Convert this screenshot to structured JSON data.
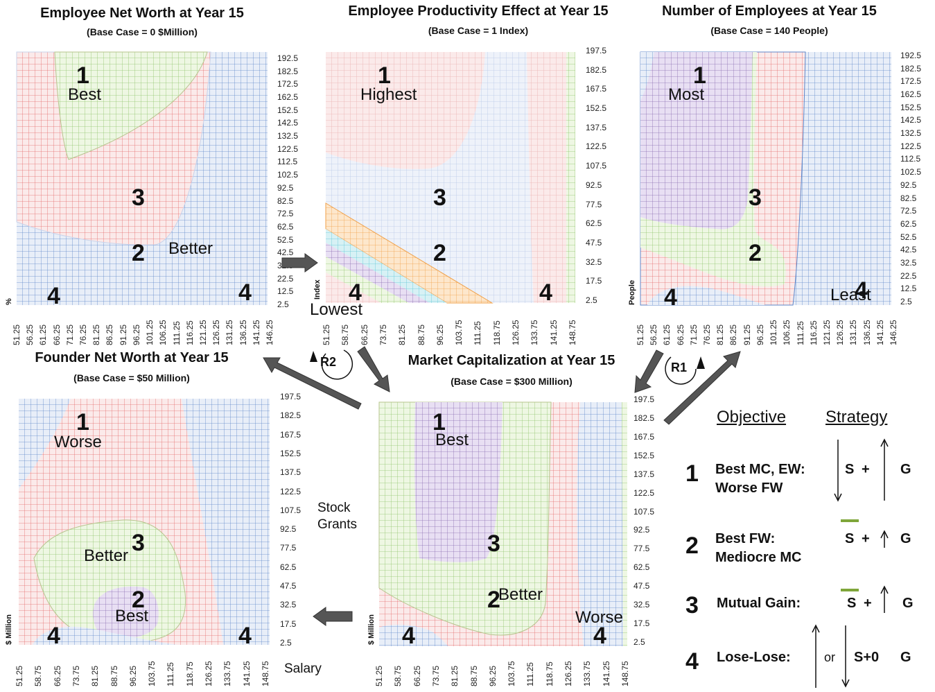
{
  "colors": {
    "red": "#e46a6a",
    "green": "#8fc46a",
    "blue": "#5d86c9",
    "purple": "#8a6bb0",
    "orange": "#f0a14a",
    "cyan": "#5fc6d6",
    "arrow_fill": "#555555"
  },
  "chart_data": [
    {
      "id": "employee-net-worth",
      "type": "heatmap",
      "title": "Employee Net Worth at Year 15",
      "subtitle": "(Base Case = 0 $Million)",
      "ylabel": "%",
      "xlabel": "",
      "x_ticks": [
        "51.25",
        "56.25",
        "61.25",
        "66.25",
        "71.25",
        "76.25",
        "81.25",
        "86.25",
        "91.25",
        "96.25",
        "101.25",
        "106.25",
        "111.25",
        "116.25",
        "121.25",
        "126.25",
        "131.25",
        "136.25",
        "141.25",
        "146.25"
      ],
      "y_ticks": [
        "192.5",
        "182.5",
        "172.5",
        "162.5",
        "152.5",
        "142.5",
        "132.5",
        "122.5",
        "112.5",
        "102.5",
        "92.5",
        "82.5",
        "72.5",
        "62.5",
        "52.5",
        "42.5",
        "32.5",
        "22.5",
        "12.5",
        "2.5"
      ],
      "region_numbers": [
        "1",
        "3",
        "2",
        "4",
        "4"
      ],
      "region_labels": [
        "Best",
        "Better"
      ]
    },
    {
      "id": "employee-productivity",
      "type": "heatmap",
      "title": "Employee Productivity  Effect at Year 15",
      "subtitle": "(Base Case = 1 Index)",
      "ylabel": "Index",
      "xlabel": "",
      "x_ticks": [
        "51.25",
        "58.75",
        "66.25",
        "73.75",
        "81.25",
        "88.75",
        "96.25",
        "103.75",
        "111.25",
        "118.75",
        "126.25",
        "133.75",
        "141.25",
        "148.75"
      ],
      "y_ticks": [
        "197.5",
        "182.5",
        "167.5",
        "152.5",
        "137.5",
        "122.5",
        "107.5",
        "92.5",
        "77.5",
        "62.5",
        "47.5",
        "32.5",
        "17.5",
        "2.5"
      ],
      "region_numbers": [
        "1",
        "3",
        "2",
        "4",
        "4"
      ],
      "region_labels": [
        "Highest",
        "Lowest"
      ]
    },
    {
      "id": "number-of-employees",
      "type": "heatmap",
      "title": "Number of Employees at Year 15",
      "subtitle": "(Base Case = 140 People)",
      "ylabel": "People",
      "xlabel": "",
      "x_ticks": [
        "51.25",
        "56.25",
        "61.25",
        "66.25",
        "71.25",
        "76.25",
        "81.25",
        "86.25",
        "91.25",
        "96.25",
        "101.25",
        "106.25",
        "111.25",
        "116.25",
        "121.25",
        "126.25",
        "131.25",
        "136.25",
        "141.25",
        "146.25"
      ],
      "y_ticks": [
        "192.5",
        "182.5",
        "172.5",
        "162.5",
        "152.5",
        "142.5",
        "132.5",
        "122.5",
        "112.5",
        "102.5",
        "92.5",
        "82.5",
        "72.5",
        "62.5",
        "52.5",
        "42.5",
        "32.5",
        "22.5",
        "12.5",
        "2.5"
      ],
      "region_numbers": [
        "1",
        "3",
        "2",
        "4",
        "4"
      ],
      "region_labels": [
        "Most",
        "Least"
      ]
    },
    {
      "id": "founder-net-worth",
      "type": "heatmap",
      "title": "Founder Net Worth at Year 15",
      "subtitle": "(Base Case = $50 Million)",
      "ylabel": "$ Million",
      "xlabel": "Salary",
      "y_axis_side_label": [
        "Stock",
        "Grants"
      ],
      "x_ticks": [
        "51.25",
        "58.75",
        "66.25",
        "73.75",
        "81.25",
        "88.75",
        "96.25",
        "103.75",
        "111.25",
        "118.75",
        "126.25",
        "133.75",
        "141.25",
        "148.75"
      ],
      "y_ticks": [
        "197.5",
        "182.5",
        "167.5",
        "152.5",
        "137.5",
        "122.5",
        "107.5",
        "92.5",
        "77.5",
        "62.5",
        "47.5",
        "32.5",
        "17.5",
        "2.5"
      ],
      "region_numbers": [
        "1",
        "3",
        "2",
        "4",
        "4"
      ],
      "region_labels": [
        "Worse",
        "Better",
        "Best"
      ]
    },
    {
      "id": "market-capitalization",
      "type": "heatmap",
      "title": "Market Capitalization  at Year 15",
      "subtitle": "(Base Case = $300 Million)",
      "ylabel": "$ Million",
      "xlabel": "",
      "x_ticks": [
        "51.25",
        "58.75",
        "66.25",
        "73.75",
        "81.25",
        "88.75",
        "96.25",
        "103.75",
        "111.25",
        "118.75",
        "126.25",
        "133.75",
        "141.25",
        "148.75"
      ],
      "y_ticks": [
        "197.5",
        "182.5",
        "167.5",
        "152.5",
        "137.5",
        "122.5",
        "107.5",
        "92.5",
        "77.5",
        "62.5",
        "47.5",
        "32.5",
        "17.5",
        "2.5"
      ],
      "region_numbers": [
        "1",
        "3",
        "2",
        "4",
        "4"
      ],
      "region_labels": [
        "Best",
        "Better",
        "Worse"
      ]
    }
  ],
  "loops": {
    "r1": "R1",
    "r2": "R2"
  },
  "legend": {
    "objective_header": "Objective",
    "strategy_header": "Strategy",
    "rows": [
      {
        "num": "1",
        "line1": "Best MC, EW:",
        "line2": "Worse FW",
        "s": "S",
        "plus": "+",
        "g": "G"
      },
      {
        "num": "2",
        "line1": "Best FW:",
        "line2": "Mediocre MC",
        "s": "S",
        "plus": "+",
        "g": "G"
      },
      {
        "num": "3",
        "line1": "Mutual Gain:",
        "line2": "",
        "s": "S",
        "plus": "+",
        "g": "G"
      },
      {
        "num": "4",
        "line1": "Lose-Lose:",
        "line2": "",
        "or": "or",
        "s": "S+0",
        "g": "G"
      }
    ]
  }
}
